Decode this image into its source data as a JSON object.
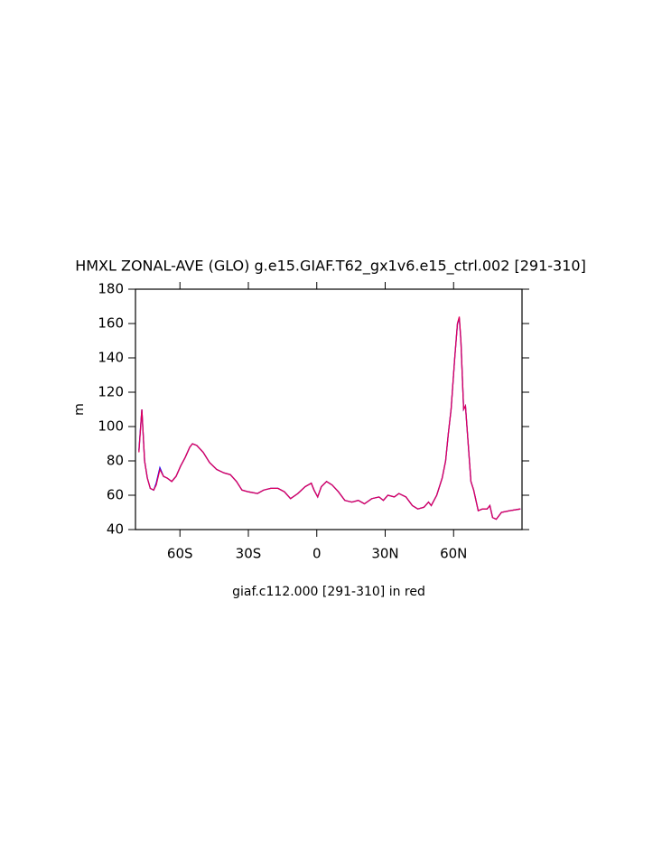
{
  "chart_data": {
    "type": "line",
    "title": "HMXL ZONAL-AVE (GLO) g.e15.GIAF.T62_gx1v6.e15_ctrl.002 [291-310]",
    "xlabel": "giaf.c112.000 [291-310] in red",
    "ylabel": "m",
    "x": [
      -78,
      -76.7,
      -75.5,
      -74.3,
      -73,
      -71.5,
      -70.4,
      -68.8,
      -67.2,
      -65.6,
      -63.6,
      -61.7,
      -59.7,
      -57.7,
      -55.7,
      -54.5,
      -52.6,
      -49.8,
      -47,
      -43.9,
      -40.7,
      -37.9,
      -35.2,
      -32.8,
      -30,
      -26,
      -23.3,
      -20.2,
      -17,
      -14.2,
      -11.5,
      -8.3,
      -5.1,
      -2.4,
      -1.2,
      0.4,
      2,
      4.3,
      6.7,
      9.5,
      12.3,
      15.4,
      18.2,
      20.9,
      24.1,
      27.3,
      29.2,
      31.2,
      34,
      36,
      39.1,
      41.9,
      44.3,
      47,
      49,
      50.2,
      52.6,
      55,
      56.5,
      57.7,
      58.9,
      60.5,
      61.7,
      62.5,
      63.2,
      64.4,
      65.2,
      66.4,
      67.6,
      68.8,
      70.8,
      72.7,
      74.7,
      75.9,
      77.1,
      78.7,
      81,
      84.6,
      89.3
    ],
    "series": [
      {
        "name": "ctrl",
        "color": "#0000ff",
        "values": [
          86,
          110,
          80,
          70,
          64,
          63,
          67,
          76,
          71,
          70,
          68,
          71,
          77,
          82,
          88,
          90,
          89,
          85,
          79,
          75,
          73,
          72,
          68,
          63,
          62,
          61,
          63,
          64,
          64,
          62,
          58,
          61,
          65,
          67,
          63,
          59,
          65,
          68,
          66,
          62,
          57,
          56,
          57,
          55,
          58,
          59,
          57,
          60,
          59,
          61,
          59,
          54,
          52,
          53,
          56,
          54,
          60,
          70,
          80,
          96,
          110,
          140,
          160,
          163,
          150,
          110,
          112,
          90,
          68,
          63,
          51,
          52,
          52,
          54,
          47,
          46,
          50,
          51,
          52
        ]
      },
      {
        "name": "giaf.c112.000",
        "color": "#e0005a",
        "values": [
          85,
          110,
          80,
          70,
          64,
          63,
          66,
          75,
          71,
          70,
          68,
          71,
          77,
          82,
          88,
          90,
          89,
          85,
          79,
          75,
          73,
          72,
          68,
          63,
          62,
          61,
          63,
          64,
          64,
          62,
          58,
          61,
          65,
          67,
          63,
          59,
          65,
          68,
          66,
          62,
          57,
          56,
          57,
          55,
          58,
          59,
          57,
          60,
          59,
          61,
          59,
          54,
          52,
          53,
          56,
          54,
          60,
          70,
          80,
          96,
          110,
          140,
          160,
          164,
          150,
          110,
          112,
          90,
          68,
          63,
          51,
          52,
          52,
          54,
          47,
          46,
          50,
          51,
          52
        ]
      }
    ],
    "xlim": [
      -79.5,
      90
    ],
    "ylim": [
      40,
      180
    ],
    "xticks": [
      {
        "value": -60,
        "label": "60S"
      },
      {
        "value": -30,
        "label": "30S"
      },
      0,
      {
        "value": 30,
        "label": "30N"
      },
      {
        "value": 60,
        "label": "60N"
      }
    ],
    "yticks": [
      40,
      60,
      80,
      100,
      120,
      140,
      160,
      180
    ]
  }
}
